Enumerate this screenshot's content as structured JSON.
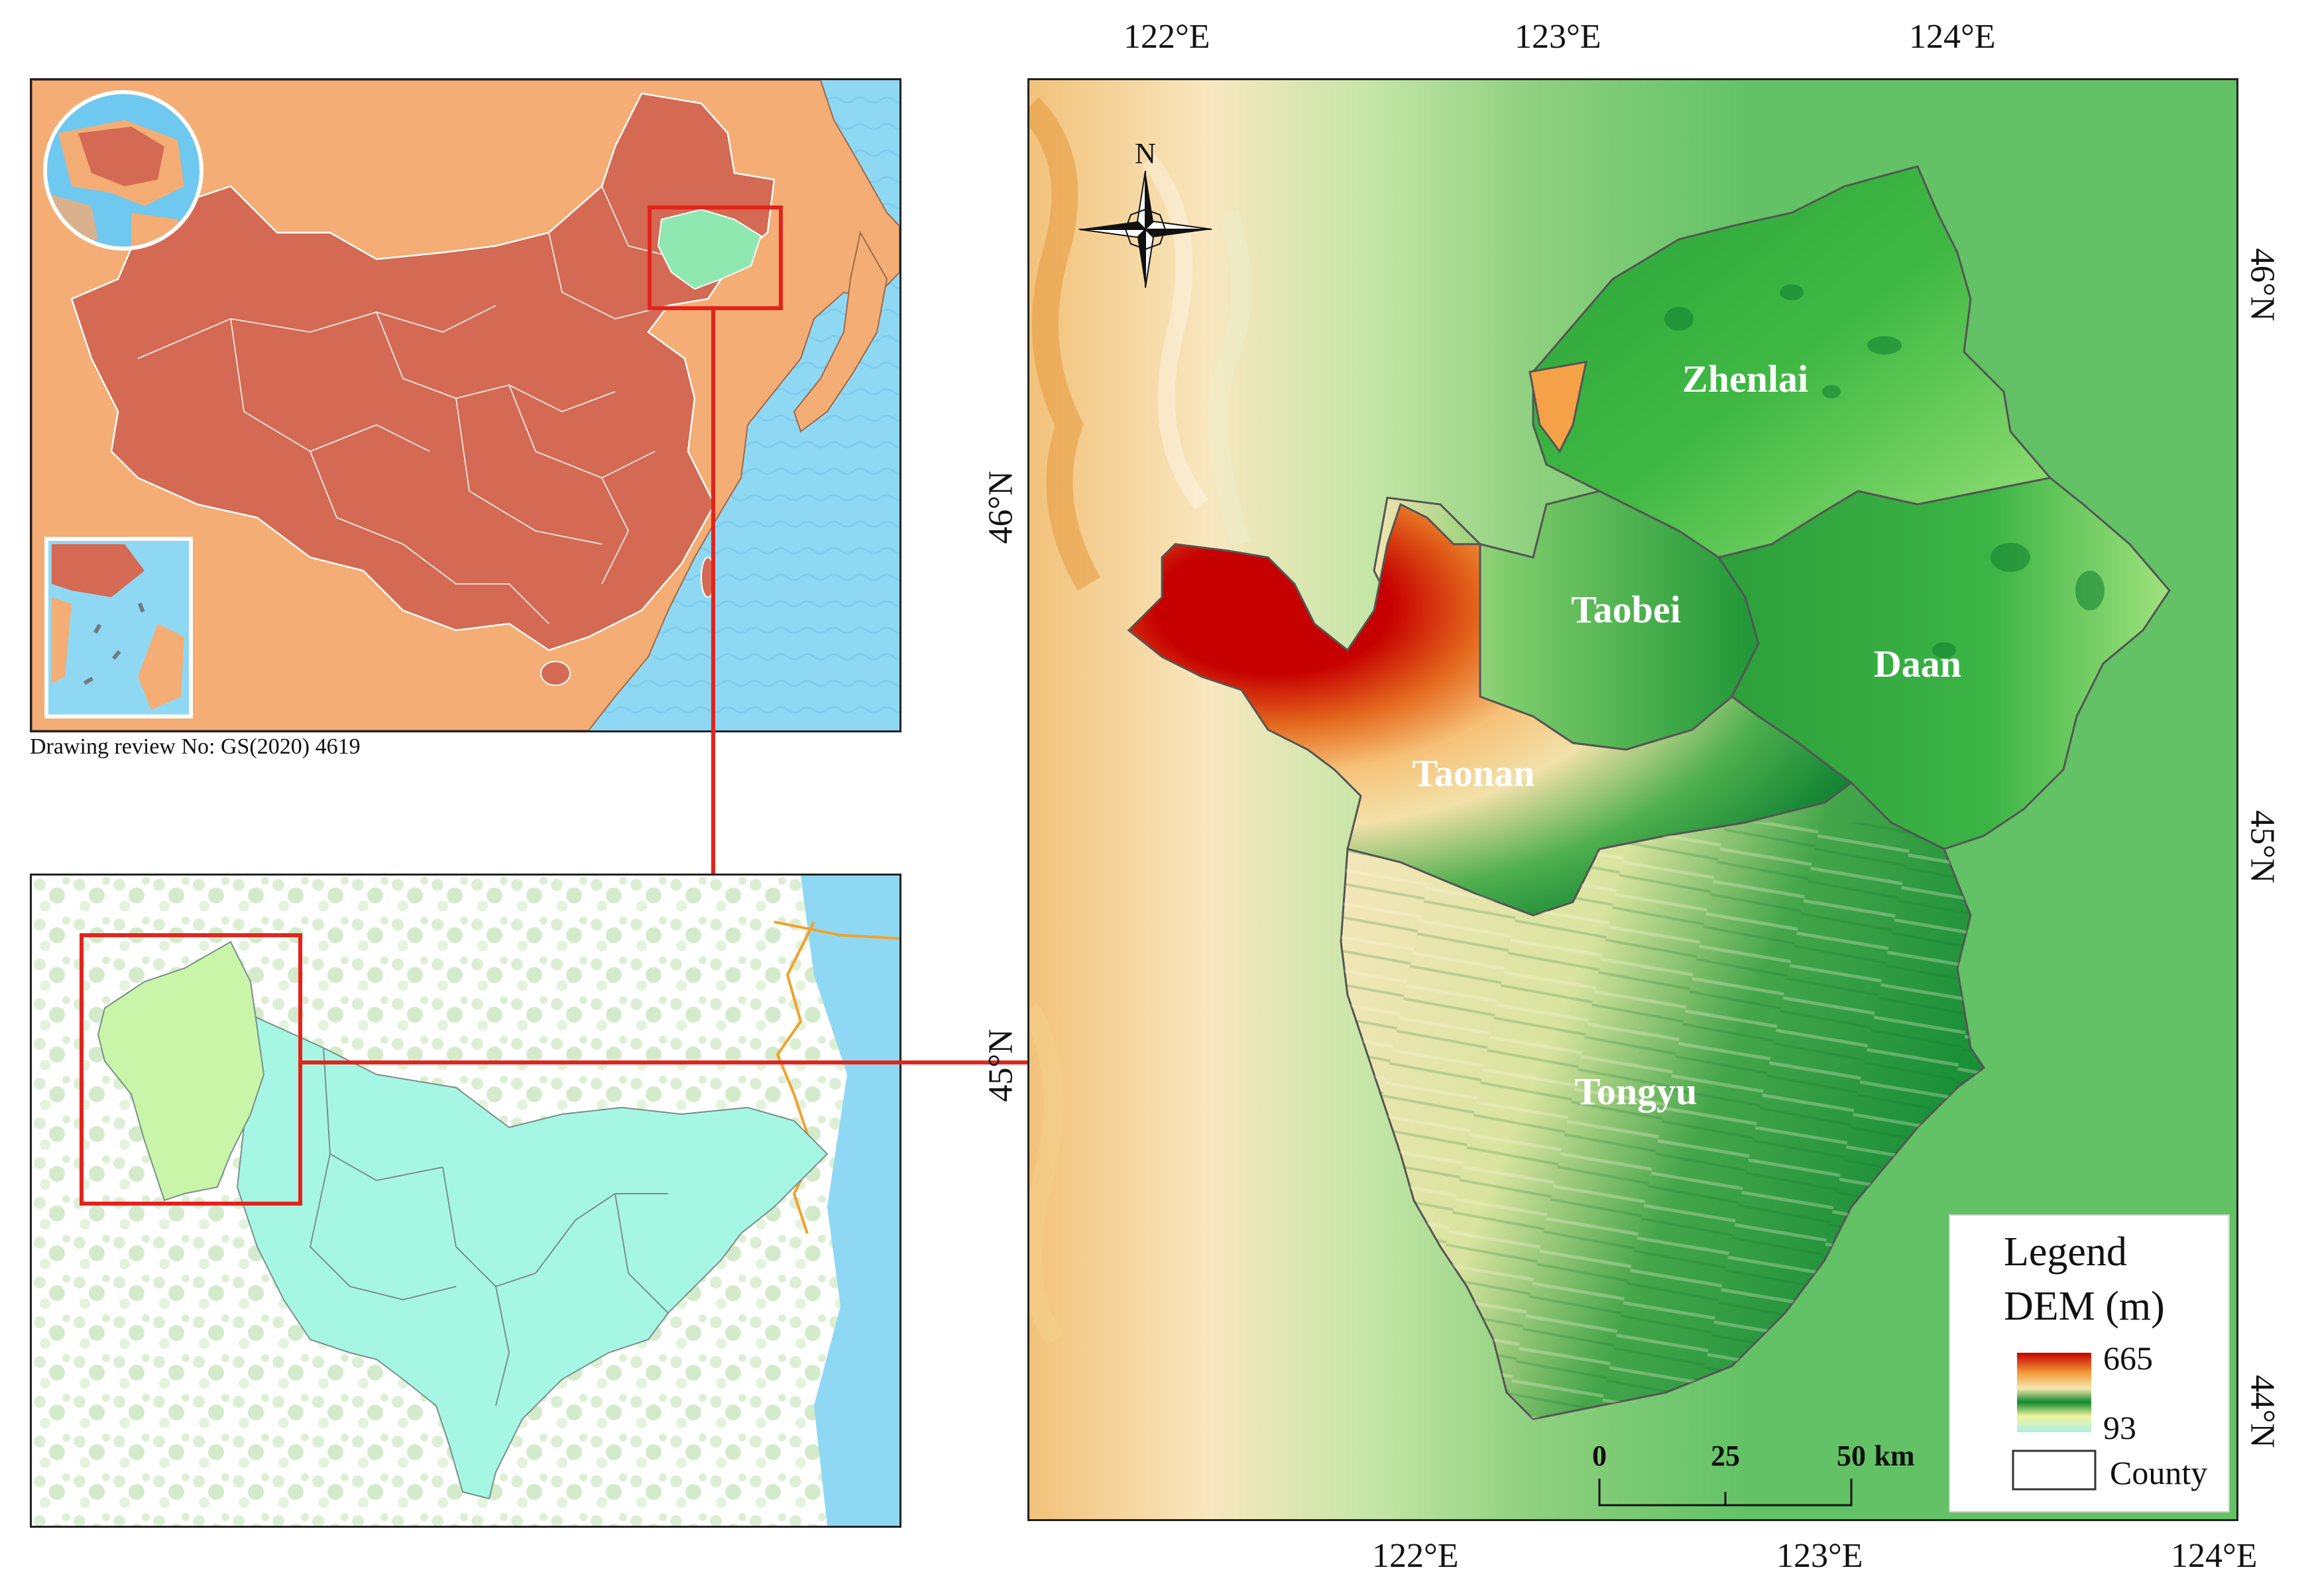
{
  "review_note": "Drawing review No:  GS(2020) 4619",
  "counties": {
    "zhenlai": "Zhenlai",
    "taobei": "Taobei",
    "daan": "Daan",
    "taonan": "Taonan",
    "tongyu": "Tongyu"
  },
  "compass": {
    "north_label": "N"
  },
  "top_axis": [
    "122°E",
    "123°E",
    "124°E"
  ],
  "bottom_axis": [
    "122°E",
    "123°E",
    "124°E"
  ],
  "left_axis": [
    "46°N",
    "45°N"
  ],
  "right_axis": [
    "46°N",
    "45°N",
    "44°N"
  ],
  "scale_bar": {
    "ticks": [
      "0",
      "25",
      "50"
    ],
    "unit": "km"
  },
  "legend": {
    "title": "Legend",
    "dem_title": "DEM (m)",
    "max": "665",
    "min": "93",
    "county_label": "County"
  },
  "colors": {
    "china_fill": "#d46a53",
    "neighbor_fill": "#f4ad74",
    "ocean": "#8fd8f4",
    "jilin_fill": "#a6f0e0",
    "study_fill": "#c8f5a8",
    "highlight": "#e3231c",
    "dem_high": "#c60000",
    "dem_mid": "#118a2e",
    "dem_low": "#a9f0e4"
  }
}
